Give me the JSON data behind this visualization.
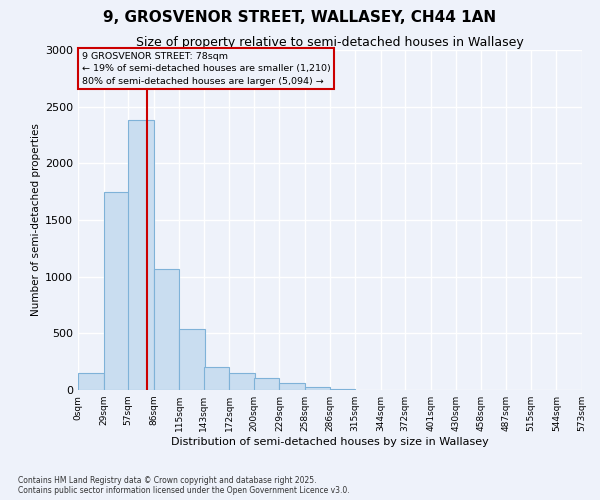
{
  "title": "9, GROSVENOR STREET, WALLASEY, CH44 1AN",
  "subtitle": "Size of property relative to semi-detached houses in Wallasey",
  "xlabel": "Distribution of semi-detached houses by size in Wallasey",
  "ylabel": "Number of semi-detached properties",
  "bin_edges": [
    0,
    29,
    57,
    86,
    115,
    143,
    172,
    200,
    229,
    258,
    286,
    315,
    344,
    372,
    401,
    430,
    458,
    487,
    515,
    544,
    573
  ],
  "bar_heights": [
    150,
    1750,
    2380,
    1070,
    535,
    200,
    150,
    110,
    60,
    25,
    10,
    0,
    0,
    0,
    0,
    0,
    0,
    0,
    0,
    0
  ],
  "bar_color": "#c9ddf0",
  "bar_edge_color": "#7fb2d8",
  "property_size": 78,
  "annotation_line1": "9 GROSVENOR STREET: 78sqm",
  "annotation_line2": "← 19% of semi-detached houses are smaller (1,210)",
  "annotation_line3": "80% of semi-detached houses are larger (5,094) →",
  "vline_color": "#cc0000",
  "annotation_box_edgecolor": "#cc0000",
  "ylim": [
    0,
    3000
  ],
  "yticks": [
    0,
    500,
    1000,
    1500,
    2000,
    2500,
    3000
  ],
  "bg_color": "#eef2fa",
  "grid_color": "#ffffff",
  "footer_line1": "Contains HM Land Registry data © Crown copyright and database right 2025.",
  "footer_line2": "Contains public sector information licensed under the Open Government Licence v3.0."
}
